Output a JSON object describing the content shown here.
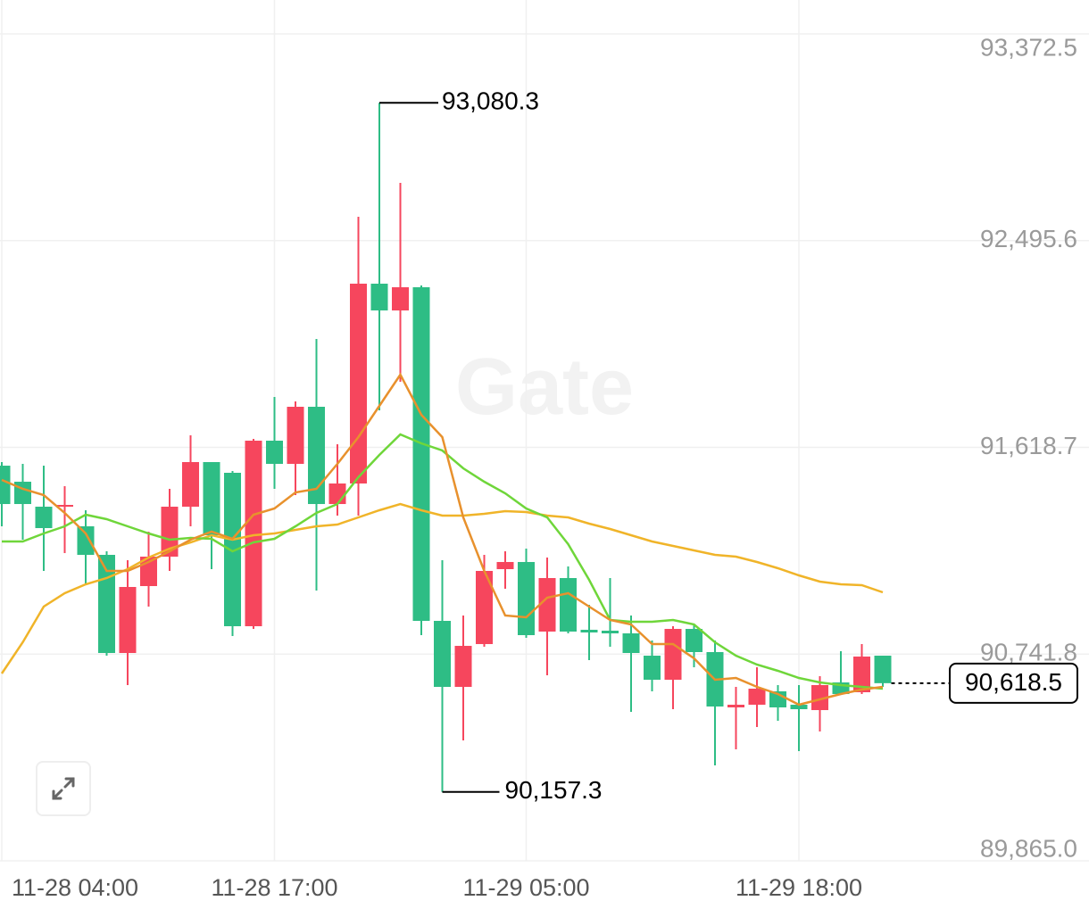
{
  "chart_data": {
    "type": "candlestick",
    "watermark": "Gate",
    "up_color": "#f6465d",
    "down_color": "#2ebd85",
    "grid": true,
    "ylim": [
      89865.0,
      93372.5
    ],
    "yticks": [
      {
        "value": 89865.0,
        "label": "89,865.0"
      },
      {
        "value": 90741.8,
        "label": "90,741.8"
      },
      {
        "value": 91618.7,
        "label": "91,618.7"
      },
      {
        "value": 92495.6,
        "label": "92,495.6"
      },
      {
        "value": 93372.5,
        "label": "93,372.5"
      }
    ],
    "categories": [
      "11-28 04:00",
      null,
      null,
      null,
      null,
      null,
      null,
      null,
      null,
      null,
      null,
      null,
      null,
      "11-28 17:00",
      null,
      null,
      null,
      null,
      null,
      null,
      null,
      null,
      null,
      null,
      null,
      "11-29 05:00",
      null,
      null,
      null,
      null,
      null,
      null,
      null,
      null,
      null,
      null,
      null,
      null,
      "11-29 18:00",
      null,
      null,
      null,
      null
    ],
    "open": [
      91541.1,
      91473.0,
      91367.1,
      91367.1,
      91283.9,
      91162.8,
      90746.6,
      91030.4,
      91155.2,
      91367.1,
      91556.3,
      91510.9,
      90860.1,
      91647.1,
      91548.7,
      91790.9,
      91378.4,
      91465.5,
      92313.0,
      92199.5,
      92297.9,
      90882.8,
      90602.8,
      90784.4,
      91102.2,
      91132.5,
      90837.4,
      91064.4,
      90845.0,
      90841.2,
      90829.8,
      90735.2,
      90633.1,
      90848.7,
      90750.4,
      90515.8,
      90527.1,
      90583.9,
      90527.1,
      90504.4,
      90621.7,
      90580.1,
      90735.2
    ],
    "high": [
      91556.3,
      91548.7,
      91541.1,
      91454.1,
      91351.9,
      91177.9,
      91140.1,
      91261.1,
      91442.8,
      91669.8,
      91556.3,
      91518.4,
      91654.6,
      91832.5,
      91813.6,
      92078.4,
      91631.9,
      92596.8,
      93080.3,
      92740.5,
      92305.4,
      91140.1,
      90905.5,
      91162.8,
      91177.9,
      91189.3,
      91151.4,
      91113.6,
      90950.9,
      91064.4,
      90905.5,
      90799.6,
      90860.1,
      90867.7,
      90799.6,
      90602.8,
      90686.0,
      90610.4,
      90610.4,
      90648.2,
      90754.1,
      90784.4,
      90735.2
    ],
    "low": [
      91283.9,
      91227.1,
      91094.7,
      91170.3,
      91037.9,
      90735.2,
      90610.4,
      90943.3,
      91094.7,
      91283.9,
      91102.2,
      90818.5,
      90848.7,
      91442.8,
      91416.3,
      91011.4,
      91329.3,
      91329.3,
      91775.7,
      91896.8,
      90822.3,
      90157.3,
      90375.8,
      90773.1,
      91019.0,
      90810.9,
      90652.0,
      90829.8,
      90716.3,
      90773.1,
      90496.9,
      90583.9,
      90508.2,
      90686.0,
      90269.8,
      90337.9,
      90432.5,
      90459.0,
      90330.4,
      90413.6,
      90572.5,
      90572.5,
      90602.8
    ],
    "close": [
      91378.4,
      91378.4,
      91276.3,
      91374.7,
      91162.8,
      90746.6,
      91026.6,
      91155.2,
      91367.1,
      91556.3,
      91246.0,
      90860.1,
      91647.1,
      91548.7,
      91790.9,
      91378.4,
      91465.5,
      92313.0,
      92199.5,
      92297.9,
      90882.8,
      90602.8,
      90776.8,
      91094.7,
      91132.5,
      90822.3,
      91064.4,
      90837.4,
      90833.6,
      90829.8,
      90746.6,
      90633.1,
      90848.7,
      90750.4,
      90519.6,
      90527.1,
      90595.2,
      90515.8,
      90508.2,
      90610.4,
      90572.5,
      90731.4,
      90618.5
    ],
    "lines": [
      {
        "color": "#f0b429",
        "values": [
          90659.6,
          90792.0,
          90943.3,
          91000.1,
          91037.9,
          91064.4,
          91102.2,
          91151.4,
          91189.3,
          91215.7,
          91246.0,
          91227.1,
          91246.0,
          91253.6,
          91268.7,
          91283.9,
          91291.4,
          91321.7,
          91351.9,
          91378.4,
          91351.9,
          91329.3,
          91329.3,
          91336.8,
          91348.2,
          91344.4,
          91329.3,
          91321.7,
          91295.2,
          91272.5,
          91246.0,
          91219.5,
          91200.6,
          91181.7,
          91162.8,
          91155.2,
          91132.5,
          91106.0,
          91075.8,
          91049.3,
          91037.9,
          91034.1,
          91003.9
        ]
      },
      {
        "color": "#6fd63a",
        "values": [
          91219.5,
          91219.5,
          91253.6,
          91283.9,
          91333.0,
          91314.1,
          91283.9,
          91253.6,
          91227.1,
          91234.7,
          91230.9,
          91177.9,
          91215.7,
          91230.9,
          91283.9,
          91340.6,
          91378.4,
          91491.9,
          91586.5,
          91673.6,
          91635.7,
          91605.5,
          91529.8,
          91473.0,
          91423.8,
          91359.5,
          91321.7,
          91208.2,
          91056.8,
          90886.6,
          90879.0,
          90879.0,
          90886.6,
          90867.7,
          90792.0,
          90735.2,
          90697.4,
          90670.9,
          90640.6,
          90621.7,
          90610.4,
          90602.8,
          90595.2
        ]
      },
      {
        "color": "#e8912d",
        "values": [
          91480.6,
          91442.8,
          91416.3,
          91340.6,
          91253.6,
          91094.7,
          91094.7,
          91132.5,
          91177.9,
          91227.1,
          91261.1,
          91230.9,
          91333.0,
          91359.5,
          91427.6,
          91442.8,
          91548.7,
          91662.2,
          91794.6,
          91927.1,
          91756.8,
          91662.2,
          91321.7,
          91094.7,
          90905.5,
          90897.9,
          90981.2,
          91000.1,
          90943.3,
          90886.6,
          90867.7,
          90784.4,
          90784.4,
          90723.9,
          90633.1,
          90640.6,
          90602.8,
          90572.5,
          90527.1,
          90549.8,
          90572.5,
          90591.5,
          90602.8
        ]
      }
    ],
    "max_label": {
      "value": 93080.3,
      "label": "93,080.3"
    },
    "min_label": {
      "value": 90157.3,
      "label": "90,157.3"
    },
    "last_price": {
      "value": 90618.5,
      "label": "90,618.5"
    }
  }
}
